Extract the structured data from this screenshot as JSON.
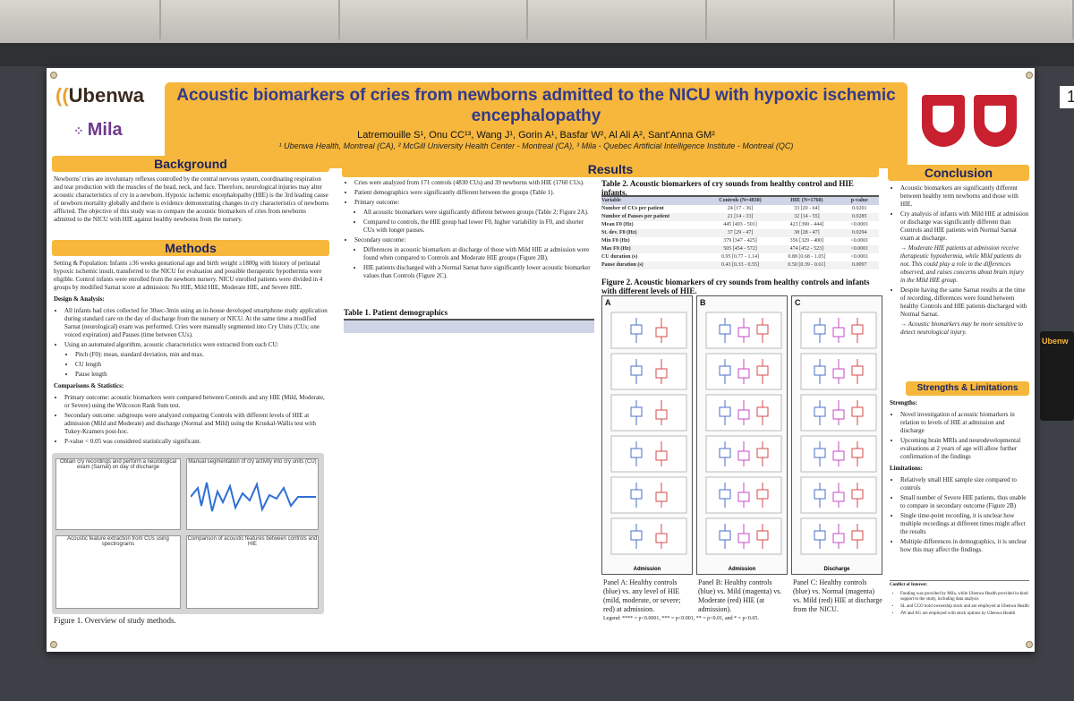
{
  "poster": {
    "logo_left": "Ubenwa",
    "logo_left_2": "Mila",
    "title": "Acoustic biomarkers of cries from newborns admitted to the NICU with hypoxic ischemic encephalopathy",
    "authors": "Latremouille S¹, Onu CC¹³, Wang J¹, Gorin A¹, Basfar W², Al Ali A², Sant'Anna GM²",
    "affiliations": "¹ Ubenwa Health, Montreal (CA), ² McGill University Health Center - Montreal (CA), ³ Mila - Quebec Artificial Intelligence Institute - Montreal (QC)"
  },
  "background": {
    "heading": "Background",
    "text": "Newborns' cries are involuntary reflexes controlled by the central nervous system, coordinating respiration and tear production with the muscles of the head, neck, and face. Therefore, neurological injuries may alter acoustic characteristics of cry in a newborn. Hypoxic ischemic encephalopathy (HIE) is the 3rd leading cause of newborn mortality globally and there is evidence demonstrating changes in cry characteristics of newborns afflicted. The objective of this study was to compare the acoustic biomarkers of cries from newborns admitted to the NICU with HIE against healthy newborns from the nursery."
  },
  "methods": {
    "heading": "Methods",
    "setting": "Setting & Population: Infants ≥36 weeks gestational age and birth weight ≥1800g with history of perinatal hypoxic ischemic insult, transferred to the NICU for evaluation and possible therapeutic hypothermia were eligible. Control infants were enrolled from the newborn nursery. NICU enrolled patients were divided in 4 groups by modified Sarnat score at admission: No HIE, Mild HIE, Moderate HIE, and Severe HIE.",
    "design_title": "Design & Analysis:",
    "design_items": [
      "All infants had cries collected for 30sec-3min using an in-house developed smartphone study application during standard care on the day of discharge from the nursery or NICU. At the same time a modified Sarnat (neurological) exam was performed. Cries were manually segmented into Cry Units (CUs; one voiced expiration) and Pauses (time between CUs).",
      "Using an automated algorithm, acoustic characteristics were extracted from each CU:",
      "Pitch (F0): mean, standard deviation, min and max.",
      "CU length",
      "Pause length"
    ],
    "comparisons_title": "Comparisons & Statistics:",
    "comparisons_items": [
      "Primary outcome: acoustic biomarkers were compared between Controls and any HIE (Mild, Moderate, or Severe) using the Wilcoxon Rank Sum test.",
      "Secondary outcome: subgroups were analyzed comparing Controls with different levels of HIE at admission (Mild and Moderate) and discharge (Normal and Mild) using the Kruskal-Wallis test with Tukey-Kramers post-hoc.",
      "P-value < 0.05 was considered statistically significant."
    ],
    "figure_caption": "Figure 1. Overview of study methods.",
    "fig_steps": [
      "Obtain cry recordings and perform a neurological exam (Sarnat) on day of discharge",
      "Manual segmentation of cry activity into cry units (CU)",
      "Acoustic feature extraction from CUs using spectrograms",
      "Comparison of acoustic features between controls and HIE"
    ]
  },
  "results": {
    "heading": "Results",
    "bullets": [
      "Cries were analyzed from 171 controls (4830 CUs) and 39 newborns with HIE (1760 CUs).",
      "Patient demographics were significantly different between the groups (Table 1).",
      "Primary outcome:",
      "All acoustic biomarkers were significantly different between groups (Table 2; Figure 2A).",
      "Compared to controls, the HIE group had lower F0, higher variability in F0, and shorter CUs with longer pauses.",
      "Secondary outcome:",
      "Differences in acoustic biomarkers at discharge of those with Mild HIE at admission were found when compared to Controls and Moderate HIE groups (Figure 2B).",
      "HIE patients discharged with a Normal Sarnat have significantly lower acoustic biomarker values than Controls (Figure 2C)."
    ],
    "table1_title": "Table 1. Patient demographics",
    "table2_title": "Table 2. Acoustic biomarkers of cry sounds from healthy control and HIE infants.",
    "table2_columns": [
      "Variable",
      "Controls (N=4830)",
      "HIE (N=1760)",
      "p-value"
    ],
    "table2_rows": [
      [
        "Number of CUs per patient",
        "24 [17 - 36]",
        "33 [20 - 64]",
        "0.0201"
      ],
      [
        "Number of Pauses per patient",
        "21 [14 - 33]",
        "32 [14 - 55]",
        "0.0285"
      ],
      [
        "Mean F0 (Hz)",
        "445 [403 - 501]",
        "423 [390 - 444]",
        "<0.0001"
      ],
      [
        "St. dev. F0 (Hz)",
        "37 [29 - 47]",
        "38 [28 - 47]",
        "0.0294"
      ],
      [
        "Min F0 (Hz)",
        "379 [347 - 425]",
        "356 [329 - 400]",
        "<0.0001"
      ],
      [
        "Max F0 (Hz)",
        "505 [454 - 572]",
        "474 [452 - 523]",
        "<0.0001"
      ],
      [
        "CU duration (s)",
        "0.95 [0.77 - 1.14]",
        "0.88 [0.68 - 1.05]",
        "<0.0001"
      ],
      [
        "Pause duration (s)",
        "0.43 [0.33 - 0.55]",
        "0.50 [0.39 - 0.61]",
        "0.0097"
      ]
    ],
    "figure2_title": "Figure 2. Acoustic biomarkers of cry sounds from healthy controls and infants with different levels of HIE.",
    "panels": [
      "A",
      "B",
      "C"
    ],
    "panel_xlabels": [
      "Admission",
      "Admission",
      "Discharge"
    ],
    "panel_a_caption": "Panel A: Healthy controls (blue) vs. any level of HIE (mild, moderate, or severe; red) at admission.",
    "panel_b_caption": "Panel B: Healthy controls (blue) vs. Mild (magenta) vs. Moderate (red) HIE (at admission).",
    "panel_c_caption": "Panel C: Healthy controls (blue) vs. Normal (magenta) vs. Mild (red) HIE at discharge from the NICU.",
    "legend_line": "Legend: **** = p<0.0001, *** = p<0.001, ** = p<0.01, and * = p<0.05."
  },
  "conclusion": {
    "heading": "Conclusion",
    "bullets": [
      "Acoustic biomarkers are significantly different between healthy term newborns and those with HIE.",
      "Cry analysis of infants with Mild HIE at admission or discharge was significantly different than Controls and HIE patients with Normal Sarnat exam at discharge.",
      "→ Moderate HIE patients at admission receive therapeutic hypothermia, while Mild patients do not. This could play a role in the differences observed, and raises concerns about brain injury in the Mild HIE group.",
      "Despite having the same Sarnat results at the time of recording, differences were found between healthy Controls and HIE patients discharged with Normal Sarnat.",
      "→ Acoustic biomarkers may be more sensitive to detect neurological injury."
    ]
  },
  "strengths": {
    "heading": "Strengths & Limitations",
    "strengths_title": "Strengths:",
    "strengths_items": [
      "Novel investigation of acoustic biomarkers in relation to levels of HIE at admission and discharge",
      "Upcoming brain MRIs and neurodevelopmental evaluations at 2 years of age will allow further confirmation of the findings"
    ],
    "limitations_title": "Limitations:",
    "limitations_items": [
      "Relatively small HIE sample size compared to controls",
      "Small number of Severe HIE patients, thus unable to compare in secondary outcome (Figure 2B)",
      "Single time-point recording, it is unclear how multiple recordings at different times might affect the results",
      "Multiple differences in demographics, it is unclear how this may affect the findings."
    ],
    "conflict_title": "Conflict of Interest:",
    "conflict_items": [
      "Funding was provided by Mila, while Ubenwa Health provided in-kind support to the study, including data analysis",
      "SL and CCO hold ownership stock and are employed at Ubenwa Health",
      "JW and AG are employed with stock options by Ubenwa Health"
    ]
  },
  "side": {
    "number": "1",
    "card_logo": "Ubenw"
  }
}
